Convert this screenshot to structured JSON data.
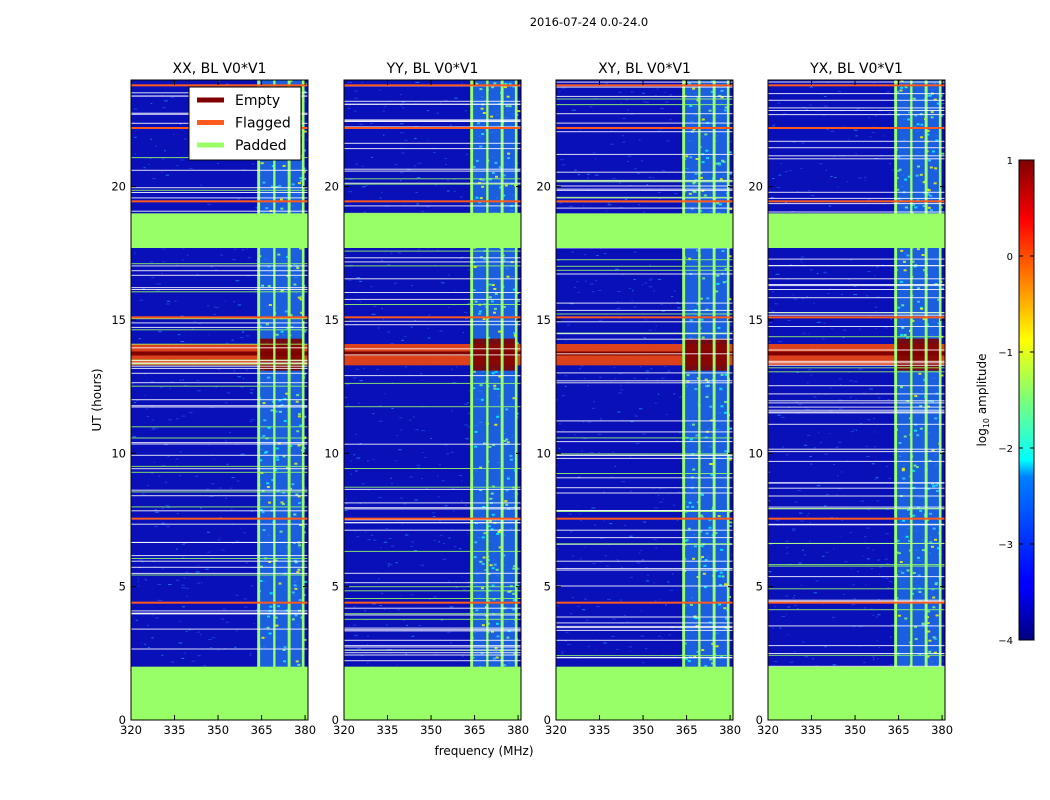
{
  "figure_title": "2016-07-24 0.0-24.0",
  "colors": {
    "padded": "#99ff66",
    "flagged": "#ff5a1e",
    "empty": "#800000",
    "background_low": "#0a10b8",
    "noise": "#2a60ff"
  },
  "chart_data": [
    {
      "type": "heatmap",
      "title": "XX, BL V0*V1",
      "xlabel": "",
      "ylabel": "UT (hours)",
      "xlim": [
        320,
        381
      ],
      "ylim": [
        0,
        24
      ],
      "xticks": [
        "320",
        "335",
        "350",
        "365",
        "380"
      ],
      "yticks": [
        "0",
        "5",
        "10",
        "15",
        "20"
      ],
      "legend": {
        "placement": "top-right",
        "entries": [
          {
            "label": "Empty",
            "color": "#800000"
          },
          {
            "label": "Flagged",
            "color": "#ff5a1e"
          },
          {
            "label": "Padded",
            "color": "#99ff66"
          }
        ]
      },
      "padded_time_ranges_hours": [
        [
          0,
          2.0
        ],
        [
          17.7,
          19.0
        ]
      ],
      "flagged_times_hours": [
        4.4,
        7.55,
        15.1,
        19.45,
        22.2,
        23.8
      ],
      "padded_freq_bands_mhz": [
        [
          363.5,
          364.5
        ],
        [
          369,
          369.8
        ],
        [
          374,
          375
        ],
        [
          378.9,
          379.8
        ]
      ],
      "rfi_band_mhz": [
        363.5,
        379.8
      ],
      "strong_event_hours": [
        13.3,
        14.1
      ],
      "colorbar_range": [
        -4,
        1
      ]
    },
    {
      "type": "heatmap",
      "title": "YY, BL V0*V1",
      "xlabel": "frequency (MHz)",
      "ylabel": "",
      "xlim": [
        320,
        381
      ],
      "ylim": [
        0,
        24
      ],
      "xticks": [
        "320",
        "335",
        "350",
        "365",
        "380"
      ],
      "yticks": [
        "0",
        "5",
        "10",
        "15",
        "20"
      ],
      "padded_time_ranges_hours": [
        [
          0,
          2.0
        ],
        [
          17.7,
          19.0
        ]
      ],
      "flagged_times_hours": [
        4.4,
        7.55,
        15.1,
        19.45,
        22.2,
        23.8
      ],
      "padded_freq_bands_mhz": [
        [
          363.5,
          364.5
        ],
        [
          369,
          369.8
        ],
        [
          374,
          375
        ],
        [
          378.9,
          379.8
        ]
      ],
      "rfi_band_mhz": [
        363.5,
        379.8
      ],
      "strong_event_hours": [
        13.3,
        14.1
      ],
      "colorbar_range": [
        -4,
        1
      ]
    },
    {
      "type": "heatmap",
      "title": "XY, BL V0*V1",
      "xlabel": "",
      "ylabel": "",
      "xlim": [
        320,
        381
      ],
      "ylim": [
        0,
        24
      ],
      "xticks": [
        "320",
        "335",
        "350",
        "365",
        "380"
      ],
      "yticks": [
        "0",
        "5",
        "10",
        "15",
        "20"
      ],
      "padded_time_ranges_hours": [
        [
          0,
          2.0
        ],
        [
          17.7,
          19.0
        ]
      ],
      "flagged_times_hours": [
        4.4,
        7.55,
        15.1,
        19.45,
        22.2,
        23.8
      ],
      "padded_freq_bands_mhz": [
        [
          363.5,
          364.5
        ],
        [
          369,
          369.8
        ],
        [
          374,
          375
        ],
        [
          378.9,
          379.8
        ]
      ],
      "rfi_band_mhz": [
        363.5,
        379.8
      ],
      "strong_event_hours": [
        13.3,
        14.1
      ],
      "colorbar_range": [
        -4,
        1
      ]
    },
    {
      "type": "heatmap",
      "title": "YX, BL V0*V1",
      "xlabel": "",
      "ylabel": "",
      "xlim": [
        320,
        381
      ],
      "ylim": [
        0,
        24
      ],
      "xticks": [
        "320",
        "335",
        "350",
        "365",
        "380"
      ],
      "yticks": [
        "0",
        "5",
        "10",
        "15",
        "20"
      ],
      "padded_time_ranges_hours": [
        [
          0,
          2.0
        ],
        [
          17.7,
          19.0
        ]
      ],
      "flagged_times_hours": [
        4.4,
        7.55,
        15.1,
        19.45,
        22.2,
        23.8
      ],
      "padded_freq_bands_mhz": [
        [
          363.5,
          364.5
        ],
        [
          369,
          369.8
        ],
        [
          374,
          375
        ],
        [
          378.9,
          379.8
        ]
      ],
      "rfi_band_mhz": [
        363.5,
        379.8
      ],
      "strong_event_hours": [
        13.3,
        14.1
      ],
      "colorbar_range": [
        -4,
        1
      ]
    }
  ],
  "colorbar": {
    "label": "log",
    "label_subscript": "10",
    "label_suffix": " amplitude",
    "ticks": [
      "1",
      "0",
      "−1",
      "−2",
      "−3",
      "−4"
    ],
    "tick_values": [
      1,
      0,
      -1,
      -2,
      -3,
      -4
    ],
    "range": [
      -4,
      1
    ]
  }
}
